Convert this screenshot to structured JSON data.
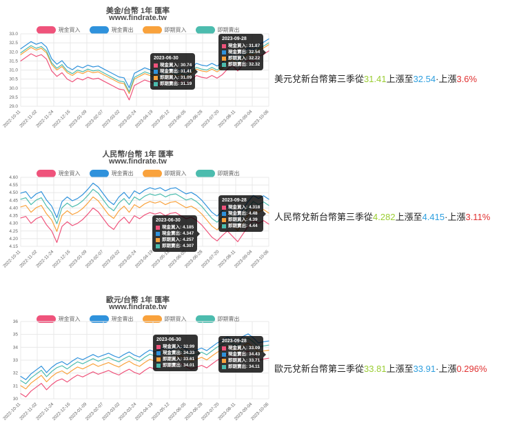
{
  "site": "www.findrate.tw",
  "ui_colors": {
    "grid": "#e8e8e8",
    "tick_text": "#666666",
    "title_text": "#4a4a4a",
    "legend_text": "#666666",
    "tooltip_bg": "rgba(0,0,0,0.8)",
    "tooltip_text": "#ffffff"
  },
  "accent_colors": {
    "from_value": "#9acd32",
    "to_value": "#2e9fdf",
    "percent": "#e03131"
  },
  "chart_data": [
    {
      "type": "line",
      "title": "美金/台幣 1年 匯率",
      "subtitle": "www.findrate.tw",
      "grid": true,
      "legend_position": "top",
      "ylim": [
        29.0,
        33.0
      ],
      "yticks": [
        "33.0",
        "32.5",
        "32.0",
        "31.5",
        "31.0",
        "30.5",
        "30.0",
        "29.5",
        "29.0"
      ],
      "x_tick_labels": [
        "2022-10-11",
        "2022-11-02",
        "2022-11-24",
        "2022-12-16",
        "2023-01-09",
        "2023-02-07",
        "2023-03-02",
        "2023-03-24",
        "2023-04-19",
        "2023-05-12",
        "2023-06-05",
        "2023-06-28",
        "2023-07-20",
        "2023-08-11",
        "2023-09-04",
        "2023-10-06"
      ],
      "series": [
        {
          "key": "cash-buy",
          "name": "現金買入",
          "color": "#ef537b",
          "values": [
            31.5,
            31.7,
            31.9,
            31.75,
            31.85,
            31.6,
            30.95,
            30.65,
            30.85,
            30.5,
            30.35,
            30.55,
            30.45,
            30.6,
            30.5,
            30.55,
            30.4,
            30.25,
            30.1,
            29.95,
            29.9,
            29.35,
            30.15,
            30.3,
            30.45,
            30.35,
            30.25,
            30.1,
            30.35,
            30.45,
            30.3,
            30.4,
            30.25,
            30.45,
            30.7,
            30.6,
            30.55,
            30.7,
            30.55,
            30.74,
            31.05,
            31.25,
            30.95,
            31.3,
            31.55,
            31.45,
            31.75,
            31.87,
            32.05
          ]
        },
        {
          "key": "cash-sell",
          "name": "現金賣出",
          "color": "#2f92dc",
          "values": [
            32.17,
            32.37,
            32.57,
            32.42,
            32.52,
            32.27,
            31.62,
            31.32,
            31.52,
            31.17,
            31.02,
            31.22,
            31.12,
            31.27,
            31.17,
            31.22,
            31.07,
            30.92,
            30.77,
            30.62,
            30.57,
            30.02,
            30.82,
            30.97,
            31.12,
            31.02,
            30.92,
            30.77,
            31.02,
            31.12,
            30.97,
            31.07,
            30.92,
            31.12,
            31.37,
            31.27,
            31.22,
            31.37,
            31.22,
            31.41,
            31.72,
            31.92,
            31.62,
            31.97,
            32.22,
            32.12,
            32.42,
            32.54,
            32.72
          ]
        },
        {
          "key": "spot-buy",
          "name": "即期買入",
          "color": "#f9a23c",
          "values": [
            31.85,
            32.05,
            32.25,
            32.1,
            32.2,
            31.95,
            31.3,
            31.0,
            31.2,
            30.85,
            30.7,
            30.9,
            30.8,
            30.95,
            30.85,
            30.9,
            30.75,
            30.6,
            30.45,
            30.3,
            30.25,
            29.7,
            30.5,
            30.65,
            30.8,
            30.7,
            30.6,
            30.45,
            30.7,
            30.8,
            30.65,
            30.75,
            30.6,
            30.8,
            31.05,
            30.95,
            30.9,
            31.05,
            30.9,
            31.09,
            31.4,
            31.6,
            31.3,
            31.65,
            31.9,
            31.8,
            32.1,
            32.22,
            32.4
          ]
        },
        {
          "key": "spot-sell",
          "name": "即期賣出",
          "color": "#4cbcae",
          "values": [
            31.95,
            32.15,
            32.35,
            32.2,
            32.3,
            32.05,
            31.4,
            31.1,
            31.3,
            30.95,
            30.8,
            31.0,
            30.9,
            31.05,
            30.95,
            31.0,
            30.85,
            30.7,
            30.55,
            30.4,
            30.35,
            29.8,
            30.6,
            30.75,
            30.9,
            30.8,
            30.7,
            30.55,
            30.8,
            30.9,
            30.75,
            30.85,
            30.7,
            30.9,
            31.15,
            31.05,
            31.0,
            31.15,
            31.0,
            31.19,
            31.5,
            31.7,
            31.4,
            31.75,
            32.0,
            31.9,
            32.2,
            32.32,
            32.5
          ]
        }
      ],
      "tooltips": [
        {
          "date": "2023-06-30",
          "rows": [
            [
              "現金買入",
              "30.74"
            ],
            [
              "現金賣出",
              "31.41"
            ],
            [
              "即期買入",
              "31.09"
            ],
            [
              "即期賣出",
              "31.19"
            ]
          ]
        },
        {
          "date": "2023-09-28",
          "rows": [
            [
              "現金買入",
              "31.87"
            ],
            [
              "現金賣出",
              "32.54"
            ],
            [
              "即期買入",
              "32.22"
            ],
            [
              "即期賣出",
              "32.32"
            ]
          ]
        }
      ]
    },
    {
      "type": "line",
      "title": "人民幣/台幣 1年 匯率",
      "subtitle": "www.findrate.tw",
      "grid": true,
      "legend_position": "top",
      "ylim": [
        4.15,
        4.6
      ],
      "yticks": [
        "4.60",
        "4.55",
        "4.50",
        "4.45",
        "4.40",
        "4.35",
        "4.30",
        "4.25",
        "4.20",
        "4.15"
      ],
      "x_tick_labels": [
        "2022-10-11",
        "2022-11-02",
        "2022-11-24",
        "2022-12-16",
        "2023-01-09",
        "2023-02-07",
        "2023-03-02",
        "2023-03-24",
        "2023-04-19",
        "2023-05-12",
        "2023-06-05",
        "2023-06-28",
        "2023-07-20",
        "2023-08-11",
        "2023-09-04",
        "2023-10-06"
      ],
      "series": [
        {
          "key": "cash-buy",
          "name": "現金買入",
          "color": "#ef537b",
          "values": [
            4.335,
            4.345,
            4.3,
            4.33,
            4.345,
            4.29,
            4.25,
            4.175,
            4.28,
            4.31,
            4.285,
            4.3,
            4.325,
            4.36,
            4.4,
            4.375,
            4.33,
            4.285,
            4.26,
            4.31,
            4.34,
            4.3,
            4.35,
            4.33,
            4.355,
            4.37,
            4.36,
            4.37,
            4.35,
            4.365,
            4.37,
            4.35,
            4.33,
            4.34,
            4.32,
            4.29,
            4.25,
            4.21,
            4.185,
            4.22,
            4.25,
            4.215,
            4.18,
            4.23,
            4.28,
            4.32,
            4.3,
            4.318,
            4.295
          ]
        },
        {
          "key": "cash-sell",
          "name": "現金賣出",
          "color": "#2f92dc",
          "values": [
            4.497,
            4.507,
            4.462,
            4.492,
            4.507,
            4.452,
            4.412,
            4.337,
            4.442,
            4.472,
            4.447,
            4.462,
            4.487,
            4.522,
            4.562,
            4.537,
            4.492,
            4.447,
            4.422,
            4.472,
            4.502,
            4.462,
            4.512,
            4.492,
            4.517,
            4.532,
            4.522,
            4.532,
            4.512,
            4.527,
            4.532,
            4.512,
            4.492,
            4.502,
            4.482,
            4.452,
            4.412,
            4.372,
            4.347,
            4.382,
            4.412,
            4.377,
            4.342,
            4.392,
            4.442,
            4.482,
            4.462,
            4.48,
            4.457
          ]
        },
        {
          "key": "spot-buy",
          "name": "即期買入",
          "color": "#f9a23c",
          "values": [
            4.407,
            4.417,
            4.372,
            4.402,
            4.417,
            4.362,
            4.322,
            4.247,
            4.352,
            4.382,
            4.357,
            4.372,
            4.397,
            4.432,
            4.472,
            4.447,
            4.402,
            4.357,
            4.332,
            4.382,
            4.412,
            4.372,
            4.422,
            4.402,
            4.427,
            4.442,
            4.432,
            4.442,
            4.422,
            4.437,
            4.442,
            4.422,
            4.402,
            4.412,
            4.392,
            4.362,
            4.322,
            4.282,
            4.257,
            4.292,
            4.322,
            4.287,
            4.252,
            4.302,
            4.352,
            4.392,
            4.372,
            4.39,
            4.367
          ]
        },
        {
          "key": "spot-sell",
          "name": "即期賣出",
          "color": "#4cbcae",
          "values": [
            4.457,
            4.467,
            4.422,
            4.452,
            4.467,
            4.412,
            4.372,
            4.297,
            4.402,
            4.432,
            4.407,
            4.422,
            4.447,
            4.482,
            4.522,
            4.497,
            4.452,
            4.407,
            4.382,
            4.432,
            4.462,
            4.422,
            4.472,
            4.452,
            4.477,
            4.492,
            4.482,
            4.492,
            4.472,
            4.487,
            4.492,
            4.472,
            4.452,
            4.462,
            4.442,
            4.412,
            4.372,
            4.332,
            4.307,
            4.342,
            4.372,
            4.337,
            4.302,
            4.352,
            4.402,
            4.442,
            4.422,
            4.44,
            4.417
          ]
        }
      ],
      "tooltips": [
        {
          "date": "2023-06-30",
          "rows": [
            [
              "現金買入",
              "4.185"
            ],
            [
              "現金賣出",
              "4.347"
            ],
            [
              "即期買入",
              "4.257"
            ],
            [
              "即期賣出",
              "4.307"
            ]
          ]
        },
        {
          "date": "2023-09-28",
          "rows": [
            [
              "現金買入",
              "4.318"
            ],
            [
              "現金賣出",
              "4.48"
            ],
            [
              "即期買入",
              "4.39"
            ],
            [
              "即期賣出",
              "4.44"
            ]
          ]
        }
      ]
    },
    {
      "type": "line",
      "title": "歐元/台幣 1年 匯率",
      "subtitle": "www.findrate.tw",
      "grid": true,
      "legend_position": "top",
      "ylim": [
        30,
        36
      ],
      "yticks": [
        "36",
        "35",
        "34",
        "33",
        "32",
        "31",
        "30"
      ],
      "x_tick_labels": [
        "2022-10-11",
        "2022-11-02",
        "2022-11-24",
        "2022-12-16",
        "2023-01-09",
        "2023-02-07",
        "2023-03-02",
        "2023-03-24",
        "2023-04-19",
        "2023-05-12",
        "2023-06-05",
        "2023-06-28",
        "2023-07-20",
        "2023-08-11",
        "2023-09-04",
        "2023-10-06"
      ],
      "series": [
        {
          "key": "cash-buy",
          "name": "現金買入",
          "color": "#ef537b",
          "values": [
            30.4,
            30.15,
            30.6,
            30.9,
            31.2,
            30.7,
            31.1,
            31.4,
            31.55,
            31.3,
            31.6,
            31.85,
            31.7,
            31.9,
            32.1,
            31.9,
            32.05,
            32.2,
            32.0,
            31.85,
            32.1,
            32.3,
            32.05,
            31.9,
            32.2,
            32.45,
            32.3,
            32.5,
            32.65,
            32.45,
            32.6,
            32.75,
            32.5,
            32.3,
            32.45,
            32.6,
            32.4,
            32.7,
            32.99,
            33.2,
            33.45,
            33.25,
            33.1,
            33.5,
            33.7,
            33.4,
            33.0,
            33.09,
            33.15
          ]
        },
        {
          "key": "cash-sell",
          "name": "現金賣出",
          "color": "#2f92dc",
          "values": [
            31.74,
            31.49,
            31.94,
            32.24,
            32.54,
            32.04,
            32.44,
            32.74,
            32.89,
            32.64,
            32.94,
            33.19,
            33.04,
            33.24,
            33.44,
            33.24,
            33.39,
            33.54,
            33.34,
            33.19,
            33.44,
            33.64,
            33.39,
            33.24,
            33.54,
            33.79,
            33.64,
            33.84,
            33.99,
            33.79,
            33.94,
            34.09,
            33.84,
            33.64,
            33.79,
            33.94,
            33.74,
            34.04,
            34.33,
            34.54,
            34.79,
            34.59,
            34.44,
            34.84,
            35.04,
            34.74,
            34.34,
            34.43,
            34.49
          ]
        },
        {
          "key": "spot-buy",
          "name": "即期買入",
          "color": "#f9a23c",
          "values": [
            31.02,
            30.77,
            31.22,
            31.52,
            31.82,
            31.32,
            31.72,
            32.02,
            32.17,
            31.92,
            32.22,
            32.47,
            32.32,
            32.52,
            32.72,
            32.52,
            32.67,
            32.82,
            32.62,
            32.47,
            32.72,
            32.92,
            32.67,
            32.52,
            32.82,
            33.07,
            32.92,
            33.12,
            33.27,
            33.07,
            33.22,
            33.37,
            33.12,
            32.92,
            33.07,
            33.22,
            33.02,
            33.32,
            33.61,
            33.82,
            34.07,
            33.87,
            33.72,
            34.12,
            34.32,
            34.02,
            33.62,
            33.71,
            33.77
          ]
        },
        {
          "key": "spot-sell",
          "name": "即期賣出",
          "color": "#4cbcae",
          "values": [
            31.42,
            31.17,
            31.62,
            31.92,
            32.22,
            31.72,
            32.12,
            32.42,
            32.57,
            32.32,
            32.62,
            32.87,
            32.72,
            32.92,
            33.12,
            32.92,
            33.07,
            33.22,
            33.02,
            32.87,
            33.12,
            33.32,
            33.07,
            32.92,
            33.22,
            33.47,
            33.32,
            33.52,
            33.67,
            33.47,
            33.62,
            33.77,
            33.52,
            33.32,
            33.47,
            33.62,
            33.42,
            33.72,
            34.01,
            34.22,
            34.47,
            34.27,
            34.12,
            34.52,
            34.72,
            34.42,
            34.02,
            34.11,
            34.17
          ]
        }
      ],
      "tooltips": [
        {
          "date": "2023-06-30",
          "rows": [
            [
              "現金買入",
              "32.99"
            ],
            [
              "現金賣出",
              "34.33"
            ],
            [
              "即期買入",
              "33.61"
            ],
            [
              "即期賣出",
              "34.01"
            ]
          ]
        },
        {
          "date": "2023-09-28",
          "rows": [
            [
              "現金買入",
              "33.09"
            ],
            [
              "現金賣出",
              "34.43"
            ],
            [
              "即期買入",
              "33.71"
            ],
            [
              "即期賣出",
              "34.11"
            ]
          ]
        }
      ]
    }
  ],
  "summaries": [
    {
      "prefix": "美元兌新台幣第三季從",
      "from": "31.41",
      "mid": "上漲至",
      "to": "32.54",
      "tail": "·上漲",
      "pct": "3.6%"
    },
    {
      "prefix": "人民幣兌新台幣第三季從",
      "from": "4.282",
      "mid": "上漲至",
      "to": "4.415",
      "tail": "·上漲",
      "pct": "3.11%"
    },
    {
      "prefix": "歐元兌新台幣第三季從",
      "from": "33.81",
      "mid": "上漲至",
      "to": "33.91",
      "tail": "·上漲",
      "pct": "0.296%"
    }
  ]
}
